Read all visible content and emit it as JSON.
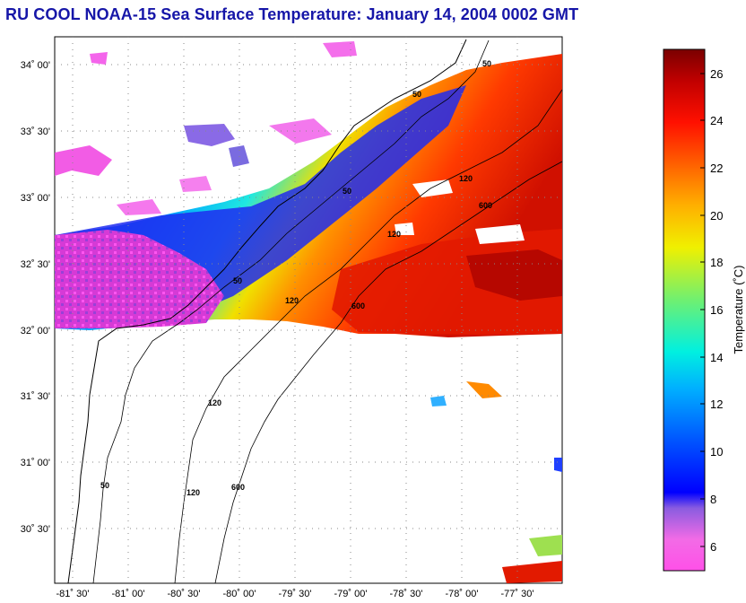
{
  "title": "RU COOL  NOAA-15  Sea Surface Temperature:  January 14, 2004 0002 GMT",
  "map": {
    "latitude_labels": [
      "34˚ 00'",
      "33˚ 30'",
      "33˚ 00'",
      "32˚ 30'",
      "32˚ 00'",
      "31˚ 30'",
      "31˚ 00'",
      "30˚ 30'"
    ],
    "longitude_labels": [
      "-81˚ 30'",
      "-81˚ 00'",
      "-80˚ 30'",
      "-80˚ 00'",
      "-79˚ 30'",
      "-79˚ 00'",
      "-78˚ 30'",
      "-78˚ 00'",
      "-77˚ 30'"
    ],
    "bathymetry_contours": [
      "50",
      "120",
      "600"
    ]
  },
  "colorbar": {
    "label": "Temperature (˚C)",
    "min": 5,
    "max": 27,
    "ticks": [
      "6",
      "8",
      "10",
      "12",
      "14",
      "16",
      "18",
      "20",
      "22",
      "24",
      "26"
    ]
  }
}
